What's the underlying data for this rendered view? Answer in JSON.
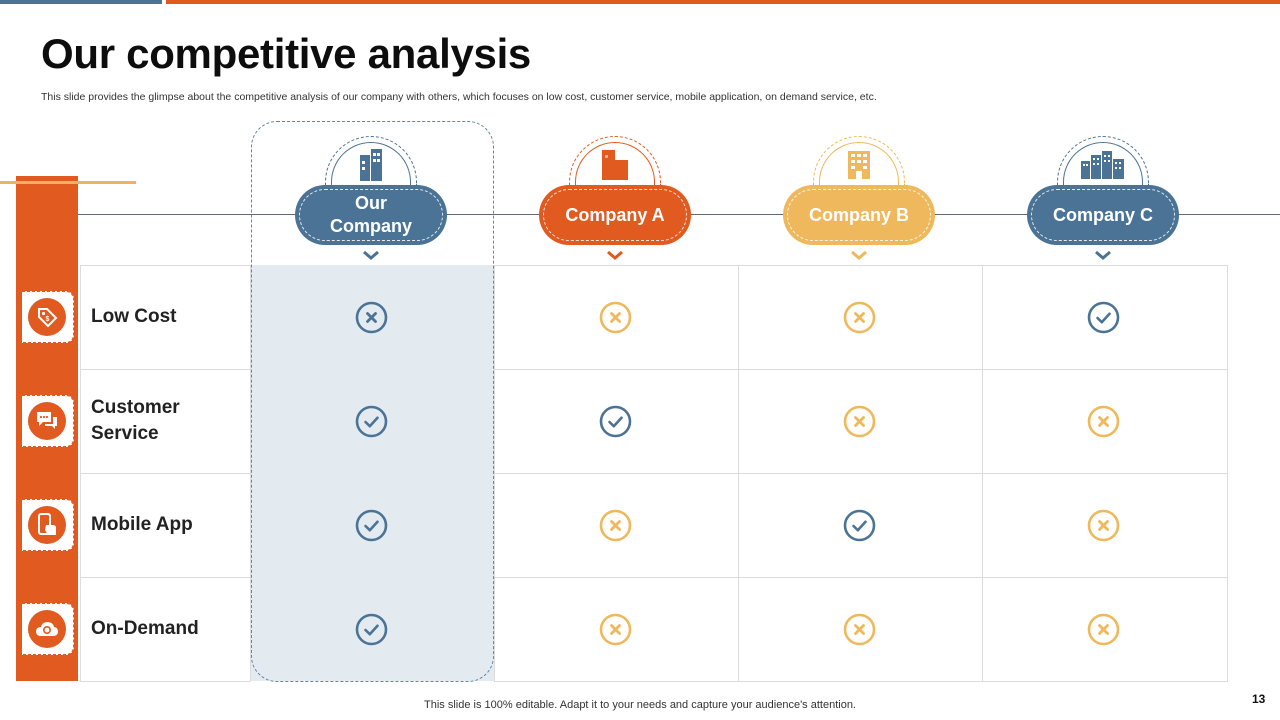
{
  "slide": {
    "title": "Our competitive analysis",
    "subtitle": "This slide provides the glimpse about the  competitive analysis of our company with others, which focuses on low cost, customer  service, mobile application, on demand service, etc.",
    "footer": "This slide is 100% editable. Adapt it to your needs and capture your audience's attention.",
    "page_number": "13"
  },
  "colors": {
    "blue": "#4a7396",
    "orange": "#e15a1f",
    "amber": "#efb85c",
    "light_blue_fill": "#e3ebf1"
  },
  "companies": [
    {
      "name": "Our Company",
      "color": "#4a7396",
      "icon": "office-building-icon"
    },
    {
      "name": "Company A",
      "color": "#e15a1f",
      "icon": "factory-building-icon"
    },
    {
      "name": "Company B",
      "color": "#efb85c",
      "icon": "single-building-icon"
    },
    {
      "name": "Company C",
      "color": "#4a7396",
      "icon": "city-buildings-icon"
    }
  ],
  "features": [
    {
      "label": "Low Cost",
      "icon": "price-tag-icon",
      "values": [
        "cross",
        "cross",
        "cross",
        "check"
      ]
    },
    {
      "label": "Customer Service",
      "icon": "chat-bubbles-icon",
      "values": [
        "check",
        "check",
        "cross",
        "cross"
      ]
    },
    {
      "label": "Mobile App",
      "icon": "mobile-touch-icon",
      "values": [
        "check",
        "cross",
        "check",
        "cross"
      ]
    },
    {
      "label": "On-Demand",
      "icon": "cloud-sync-icon",
      "values": [
        "check",
        "cross",
        "cross",
        "cross"
      ]
    }
  ]
}
